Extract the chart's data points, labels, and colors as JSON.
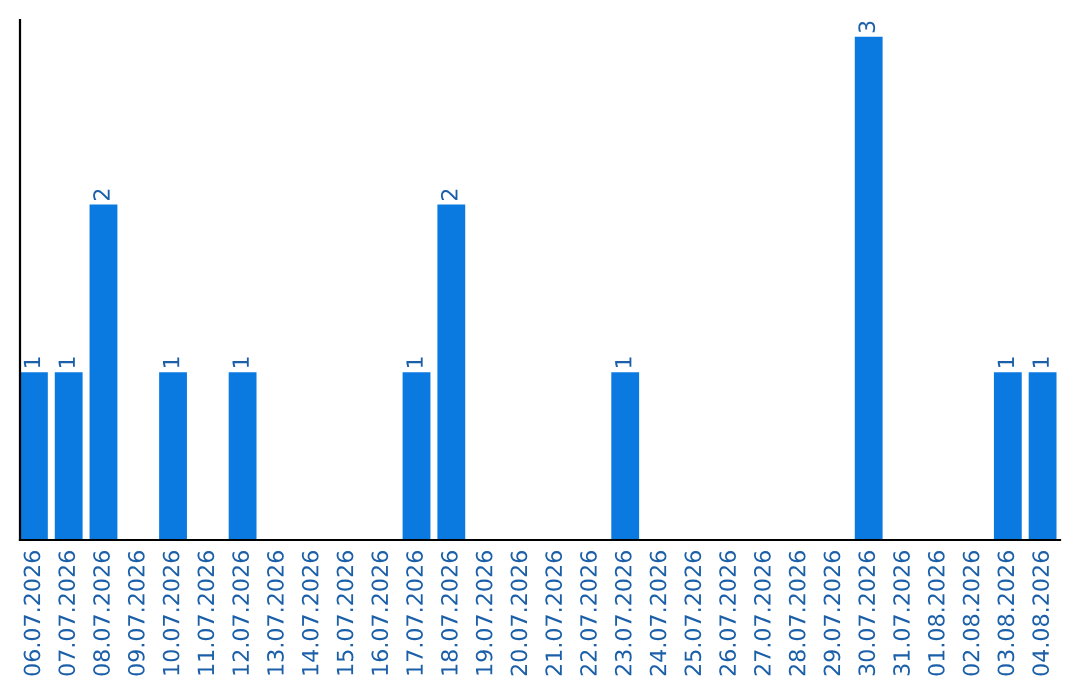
{
  "chart_data": {
    "type": "bar",
    "categories": [
      "06.07.2026",
      "07.07.2026",
      "08.07.2026",
      "09.07.2026",
      "10.07.2026",
      "11.07.2026",
      "12.07.2026",
      "13.07.2026",
      "14.07.2026",
      "15.07.2026",
      "16.07.2026",
      "17.07.2026",
      "18.07.2026",
      "19.07.2026",
      "20.07.2026",
      "21.07.2026",
      "22.07.2026",
      "23.07.2026",
      "24.07.2026",
      "25.07.2026",
      "26.07.2026",
      "27.07.2026",
      "28.07.2026",
      "29.07.2026",
      "30.07.2026",
      "31.07.2026",
      "01.08.2026",
      "02.08.2026",
      "03.08.2026",
      "04.08.2026"
    ],
    "values": [
      1,
      1,
      2,
      0,
      1,
      0,
      1,
      0,
      0,
      0,
      0,
      1,
      2,
      0,
      0,
      0,
      0,
      1,
      0,
      0,
      0,
      0,
      0,
      0,
      3,
      0,
      0,
      0,
      1,
      1
    ],
    "value_labels": [
      "1",
      "1",
      "2",
      null,
      "1",
      null,
      "1",
      null,
      null,
      null,
      null,
      "1",
      "2",
      null,
      null,
      null,
      null,
      "1",
      null,
      null,
      null,
      null,
      null,
      null,
      "3",
      null,
      null,
      null,
      "1",
      "1"
    ],
    "color": "#0a7ae0",
    "ylim": [
      0,
      3.1
    ],
    "tick_labels": "x",
    "grid": false,
    "legend": false
  }
}
